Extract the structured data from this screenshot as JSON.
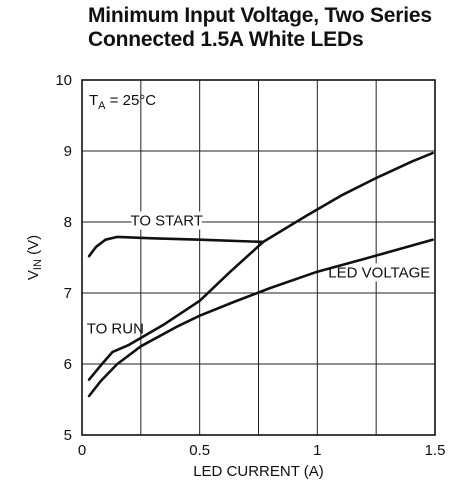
{
  "chart_data": {
    "type": "line",
    "title_lines": [
      "Minimum Input Voltage, Two Series",
      "Connected 1.5A White LEDs"
    ],
    "xlabel": "LED CURRENT (A)",
    "ylabel": {
      "main": "V",
      "sub": "IN",
      "suffix": " (V)"
    },
    "xlim": [
      0,
      1.5
    ],
    "ylim": [
      5,
      10
    ],
    "xticks": [
      0,
      0.5,
      1,
      1.5
    ],
    "xtick_labels": [
      "0",
      "0.5",
      "1",
      "1.5"
    ],
    "xminor": [
      0.25,
      0.75,
      1.25
    ],
    "yticks": [
      5,
      6,
      7,
      8,
      9,
      10
    ],
    "ytick_labels": [
      "5",
      "6",
      "7",
      "8",
      "9",
      "10"
    ],
    "grid": true,
    "condition": {
      "main": "T",
      "sub": "A",
      "suffix": " = 25°C"
    },
    "series": [
      {
        "name": "TO START",
        "x": [
          0.03,
          0.06,
          0.1,
          0.15,
          0.3,
          0.5,
          0.77
        ],
        "y": [
          7.52,
          7.65,
          7.75,
          7.79,
          7.77,
          7.75,
          7.72
        ]
      },
      {
        "name": "TO RUN",
        "x": [
          0.03,
          0.08,
          0.13,
          0.2,
          0.35,
          0.5,
          0.63,
          0.77,
          0.95,
          1.1,
          1.25,
          1.4,
          1.49
        ],
        "y": [
          5.78,
          5.98,
          6.17,
          6.27,
          6.56,
          6.89,
          7.3,
          7.72,
          8.08,
          8.37,
          8.62,
          8.85,
          8.97
        ]
      },
      {
        "name": "LED VOLTAGE",
        "x": [
          0.03,
          0.08,
          0.15,
          0.25,
          0.4,
          0.5,
          0.65,
          0.8,
          1.0,
          1.2,
          1.49
        ],
        "y": [
          5.55,
          5.76,
          6.0,
          6.25,
          6.52,
          6.68,
          6.88,
          7.07,
          7.3,
          7.48,
          7.75
        ]
      }
    ]
  }
}
